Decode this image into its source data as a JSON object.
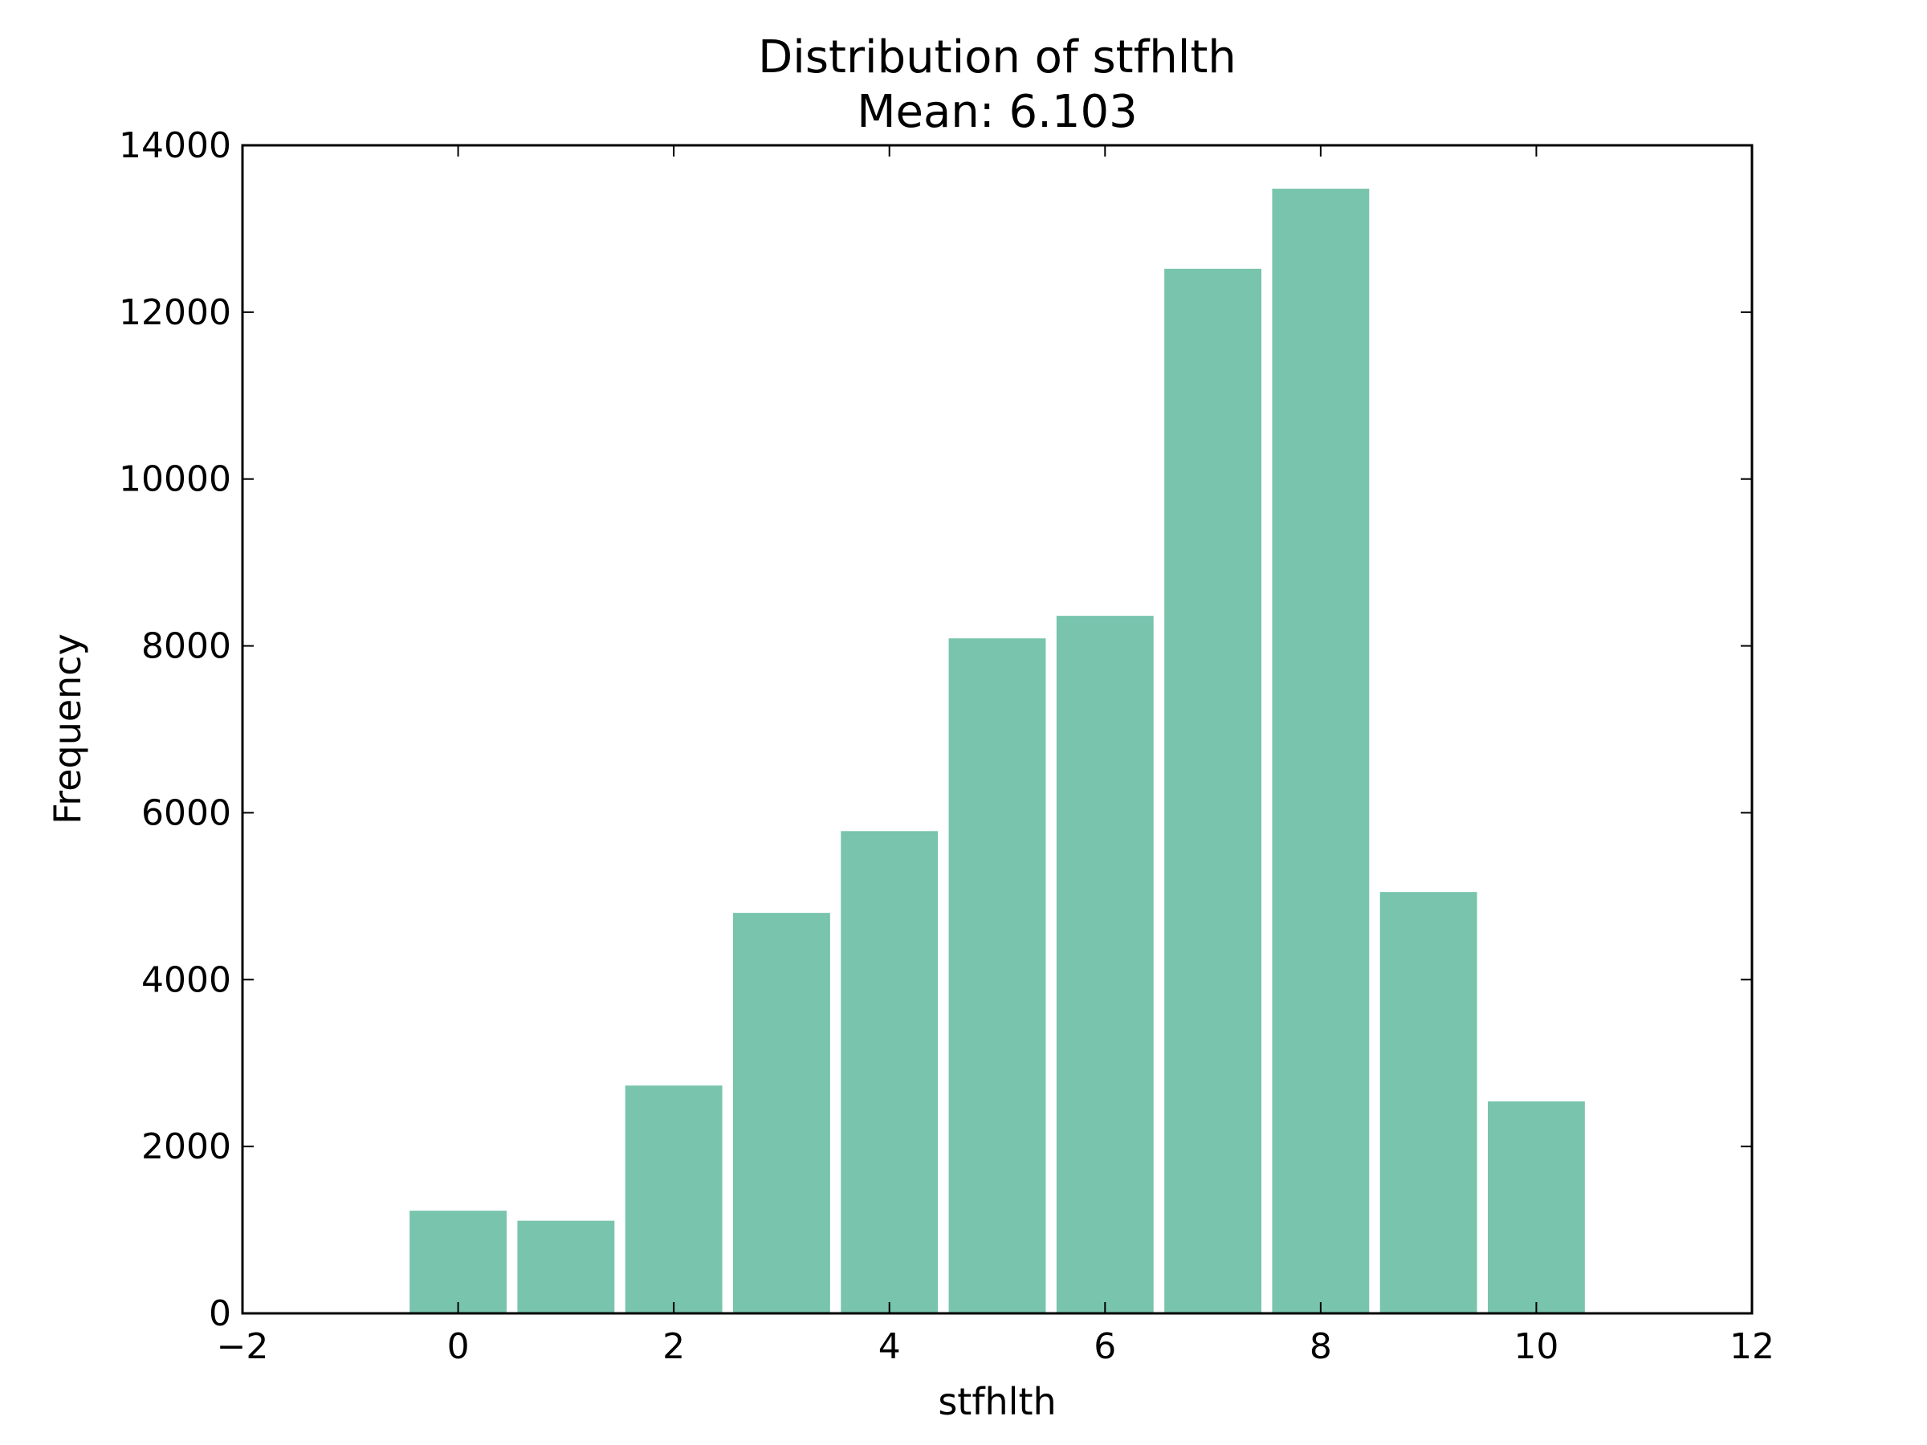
{
  "chart_data": {
    "type": "bar",
    "title": "Distribution of stfhlth",
    "subtitle": "Mean: 6.103",
    "xlabel": "stfhlth",
    "ylabel": "Frequency",
    "x": [
      0,
      1,
      2,
      3,
      4,
      5,
      6,
      7,
      8,
      9,
      10
    ],
    "values": [
      1230,
      1110,
      2730,
      4800,
      5780,
      8090,
      8360,
      12520,
      13480,
      5050,
      2540
    ],
    "bar_width": 0.9,
    "xlim": [
      -2,
      12
    ],
    "ylim": [
      0,
      14000
    ],
    "xticks": [
      -2,
      0,
      2,
      4,
      6,
      8,
      10,
      12
    ],
    "xtick_labels": [
      "−2",
      "0",
      "2",
      "4",
      "6",
      "8",
      "10",
      "12"
    ],
    "yticks": [
      0,
      2000,
      4000,
      6000,
      8000,
      10000,
      12000,
      14000
    ],
    "ytick_labels": [
      "0",
      "2000",
      "4000",
      "6000",
      "8000",
      "10000",
      "12000",
      "14000"
    ],
    "bar_color": "#78c4ad",
    "grid": false,
    "legend": false
  }
}
